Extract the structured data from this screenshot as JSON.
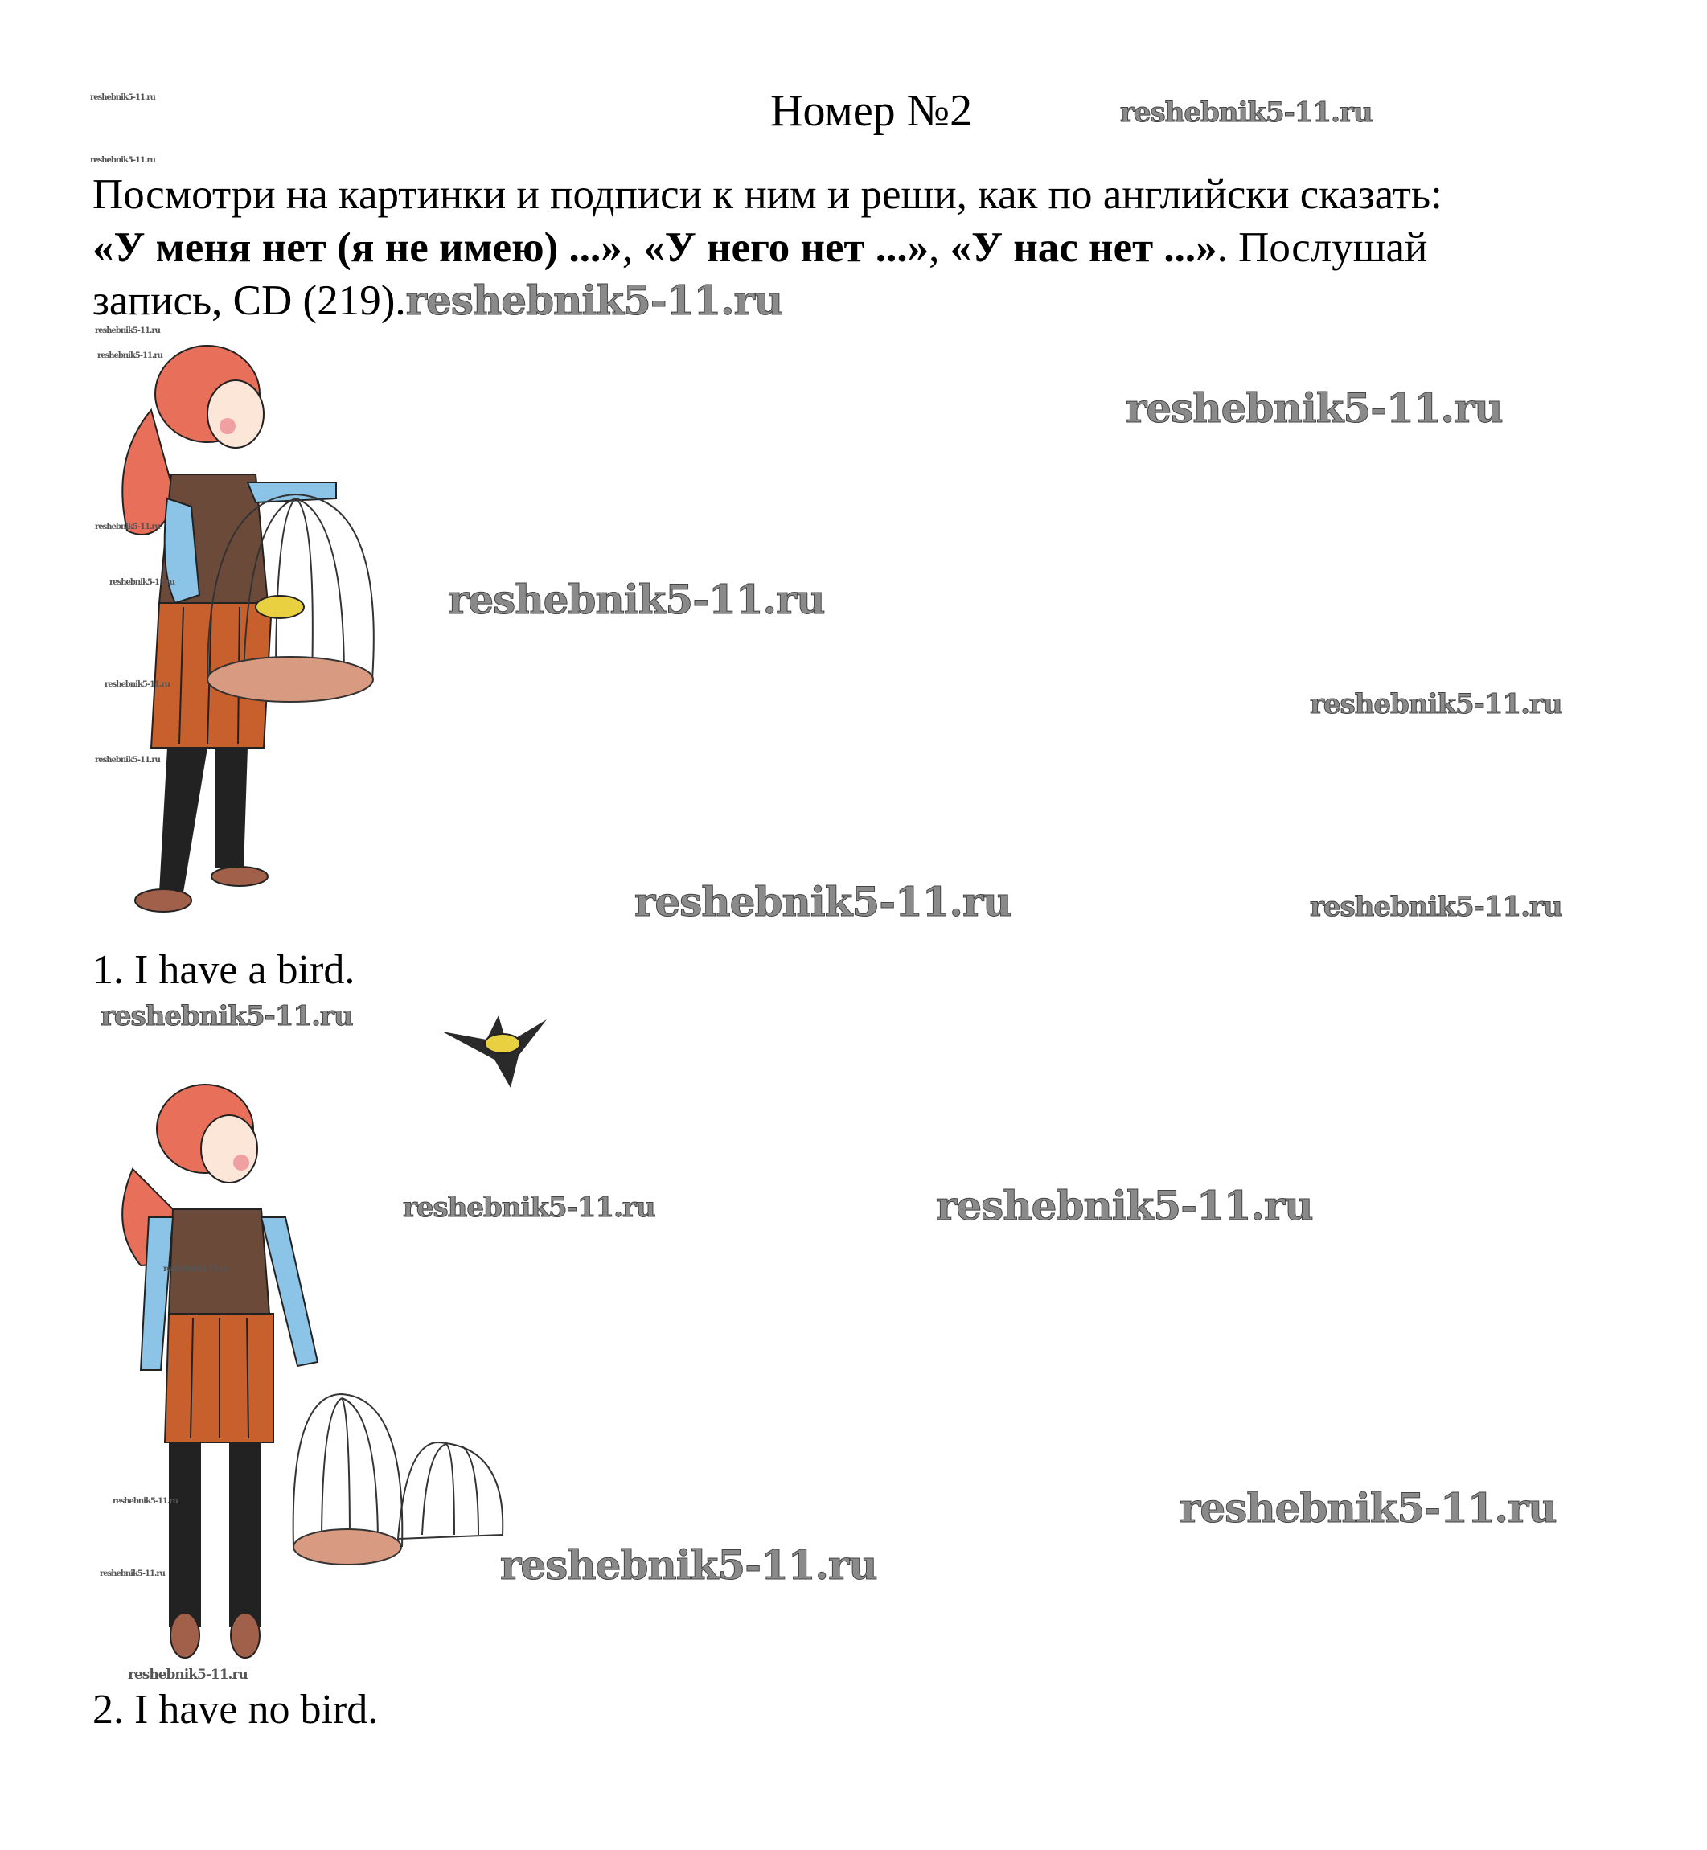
{
  "title": "Номер №2",
  "instruction": {
    "line1": "Посмотри на картинки и подписи к ним и реши, как по английски сказать:",
    "line2_bold1": "«У меня нет (я не имею) ...»",
    "line2_sep1": ", ",
    "line2_bold2": "«У него нет ...»",
    "line2_sep2": ", ",
    "line2_bold3": "«У нас нет ...»",
    "line2_rest": ". Послушай",
    "line3": "запись, CD (219)."
  },
  "captions": [
    "1. I have a bird.",
    "2. I have no bird."
  ],
  "watermark": "reshebnik5-11.ru",
  "colors": {
    "hair": "#e8705a",
    "dress": "#6b4a3a",
    "skirt": "#c8602e",
    "shirt": "#8cc4e8",
    "bird": "#e8d040"
  }
}
